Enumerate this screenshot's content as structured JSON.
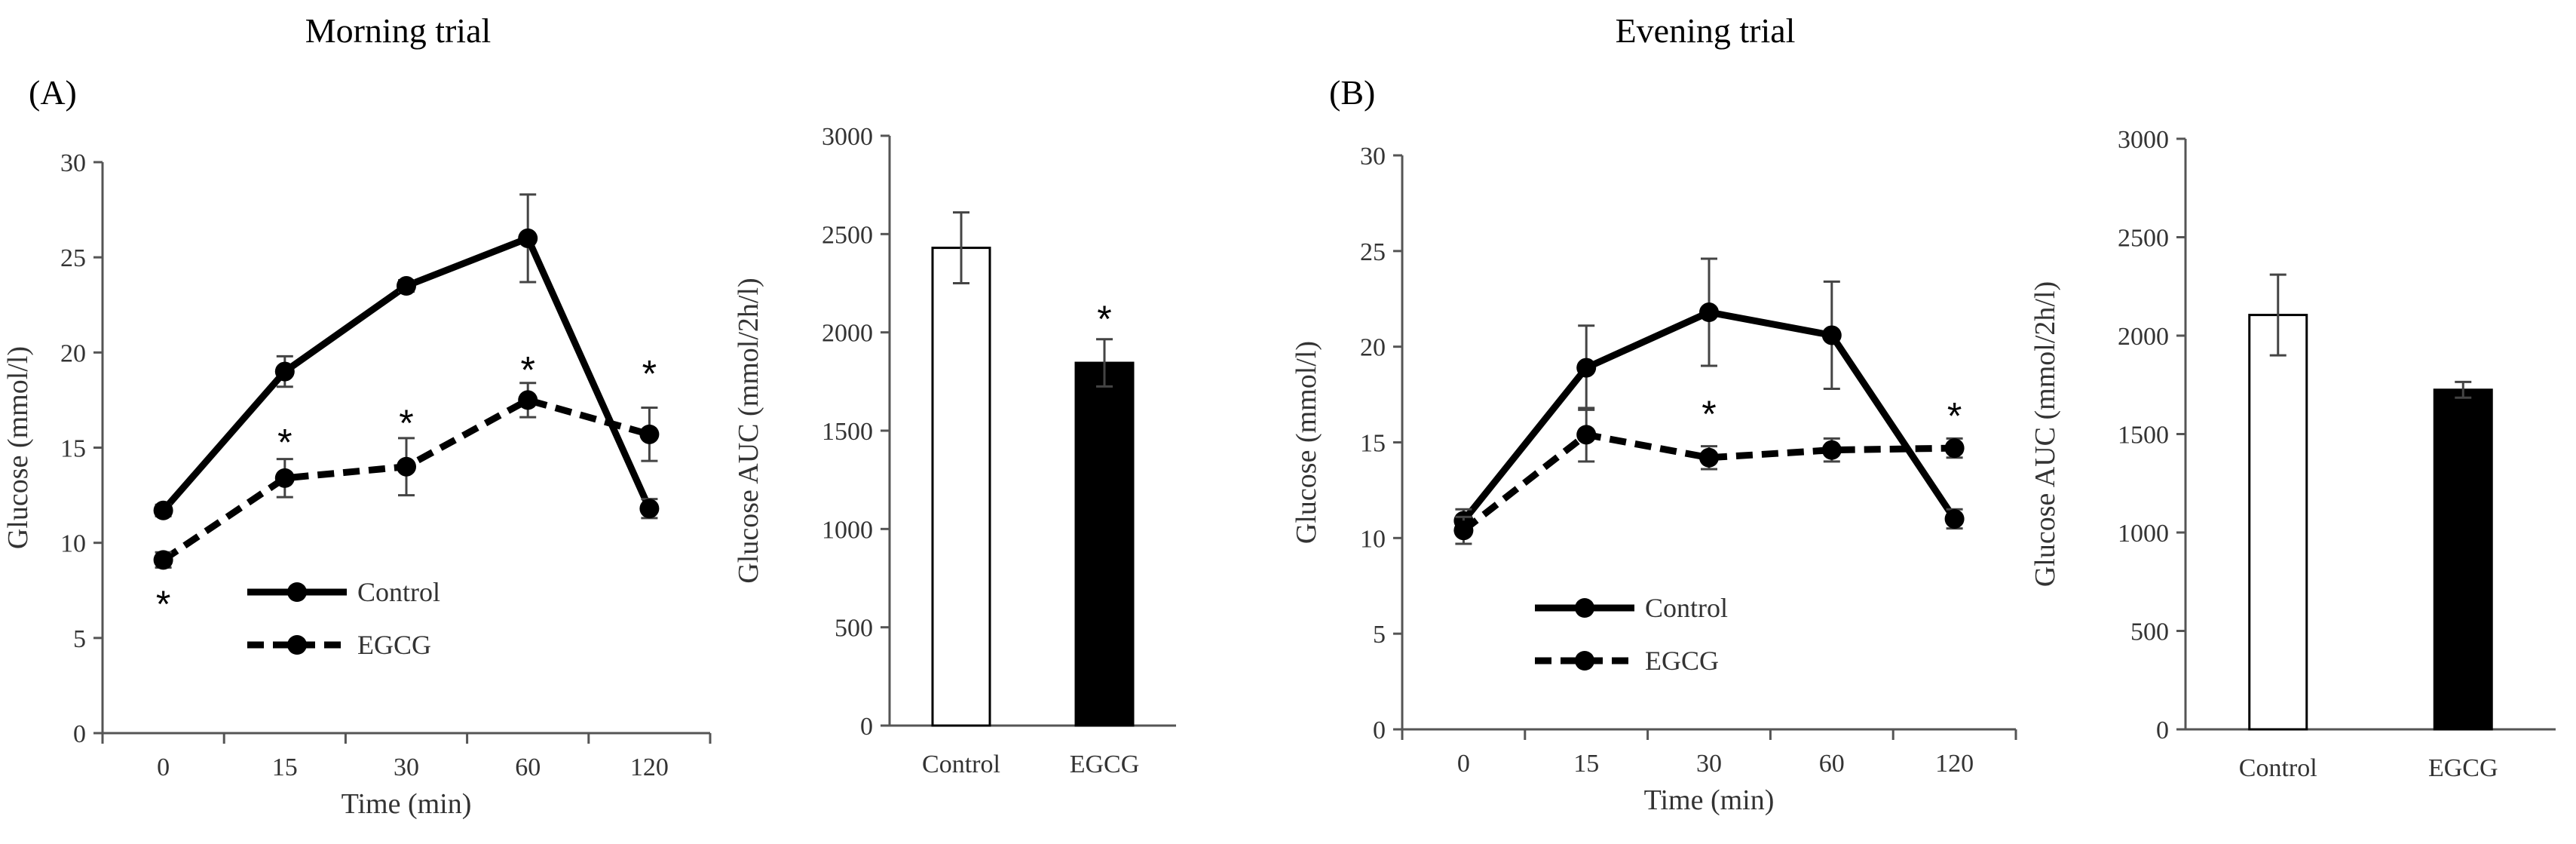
{
  "chart_data": [
    {
      "type": "line",
      "panel": "(A)",
      "title": "Morning trial",
      "xlabel": "Time (min)",
      "ylabel": "Glucose (mmol/l)",
      "ylim": [
        0,
        30
      ],
      "yticks": [
        0,
        5,
        10,
        15,
        20,
        25,
        30
      ],
      "categories": [
        "0",
        "15",
        "30",
        "60",
        "120"
      ],
      "legend_position": "bottom-left",
      "series": [
        {
          "name": "Control",
          "style": "solid",
          "values": [
            11.7,
            19.0,
            23.5,
            26.0,
            11.8
          ],
          "errors": [
            0.3,
            0.8,
            0.3,
            2.3,
            0.5
          ]
        },
        {
          "name": "EGCG",
          "style": "dashed",
          "values": [
            9.1,
            13.4,
            14.0,
            17.5,
            15.7
          ],
          "errors": [
            0.4,
            1.0,
            1.5,
            0.9,
            1.4
          ]
        }
      ],
      "annotations": [
        {
          "text": "*",
          "x": "0",
          "y": 6.9
        },
        {
          "text": "*",
          "x": "15",
          "y": 15.4
        },
        {
          "text": "*",
          "x": "30",
          "y": 16.4
        },
        {
          "text": "*",
          "x": "60",
          "y": 19.2
        },
        {
          "text": "*",
          "x": "120",
          "y": 19.0
        }
      ]
    },
    {
      "type": "bar",
      "title": "",
      "xlabel": "",
      "ylabel": "Glucose AUC (mmol/2h/l)",
      "ylim": [
        0,
        3000
      ],
      "yticks": [
        0,
        500,
        1000,
        1500,
        2000,
        2500,
        3000
      ],
      "categories": [
        "Control",
        "EGCG"
      ],
      "values": [
        2430,
        1845
      ],
      "errors": [
        180,
        120
      ],
      "colors": [
        "#ffffff",
        "#000000"
      ],
      "annotations": [
        {
          "text": "*",
          "x": "EGCG",
          "y": 2080
        }
      ]
    },
    {
      "type": "line",
      "panel": "(B)",
      "title": "Evening trial",
      "xlabel": "Time (min)",
      "ylabel": "Glucose (mmol/l)",
      "ylim": [
        0,
        30
      ],
      "yticks": [
        0,
        5,
        10,
        15,
        20,
        25,
        30
      ],
      "categories": [
        "0",
        "15",
        "30",
        "60",
        "120"
      ],
      "legend_position": "bottom-left",
      "series": [
        {
          "name": "Control",
          "style": "solid",
          "values": [
            10.9,
            18.9,
            21.8,
            20.6,
            11.0
          ],
          "errors": [
            0.6,
            2.2,
            2.8,
            2.8,
            0.5
          ]
        },
        {
          "name": "EGCG",
          "style": "dashed",
          "values": [
            10.4,
            15.4,
            14.2,
            14.6,
            14.7
          ],
          "errors": [
            0.7,
            1.4,
            0.6,
            0.6,
            0.5
          ]
        }
      ],
      "annotations": [
        {
          "text": "*",
          "x": "30",
          "y": 16.6
        },
        {
          "text": "*",
          "x": "120",
          "y": 16.5
        }
      ]
    },
    {
      "type": "bar",
      "title": "",
      "xlabel": "",
      "ylabel": "Glucose AUC (mmol/2h/l)",
      "ylim": [
        0,
        3000
      ],
      "yticks": [
        0,
        500,
        1000,
        1500,
        2000,
        2500,
        3000
      ],
      "categories": [
        "Control",
        "EGCG"
      ],
      "values": [
        2105,
        1725
      ],
      "errors": [
        205,
        40
      ],
      "colors": [
        "#ffffff",
        "#000000"
      ],
      "annotations": []
    }
  ]
}
